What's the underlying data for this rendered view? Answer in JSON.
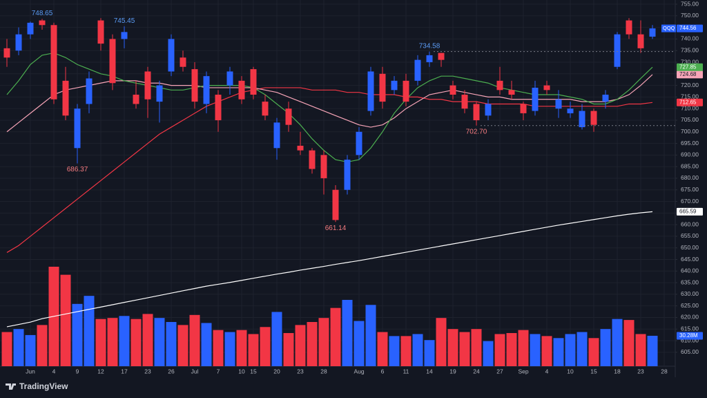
{
  "chart_data": {
    "type": "candlestick",
    "symbol": "QQQ",
    "brand": "TradingView",
    "up_color": "#2962ff",
    "down_color": "#f23645",
    "categories": [
      null,
      null,
      "Jun",
      null,
      "4",
      null,
      "9",
      null,
      "12",
      null,
      "17",
      null,
      "23",
      null,
      "26",
      null,
      "Jul",
      null,
      "7",
      null,
      "10",
      "15",
      null,
      "20",
      null,
      "23",
      null,
      "28",
      null,
      null,
      "Aug",
      null,
      "6",
      null,
      "11",
      null,
      "14",
      null,
      "19",
      null,
      "24",
      null,
      "27",
      null,
      "Sep",
      null,
      "4",
      null,
      "10",
      null,
      "15",
      null,
      "18",
      null,
      "23",
      null,
      "28"
    ],
    "open": [
      736,
      735,
      742,
      748,
      746,
      722,
      693,
      712,
      748,
      740,
      740,
      716,
      726,
      713,
      726,
      732,
      727,
      712,
      716,
      720,
      722,
      727,
      713,
      693,
      710,
      694,
      692,
      690,
      675,
      675,
      690,
      709,
      725,
      718,
      722,
      722,
      730,
      734,
      720,
      716,
      712,
      707,
      722,
      718,
      712,
      709,
      720,
      710,
      708,
      702,
      709,
      713,
      728,
      748,
      742,
      741,
      null
    ],
    "high": [
      740,
      745,
      747.5,
      748.65,
      747,
      728,
      712,
      726,
      749,
      742,
      745.45,
      722,
      728,
      722,
      742,
      735,
      730,
      726,
      718,
      728,
      724,
      728,
      716,
      706,
      713,
      700,
      693,
      692,
      677,
      690,
      702,
      728,
      728,
      724,
      725,
      733,
      734.58,
      734,
      722,
      718,
      713,
      714,
      728,
      722,
      713,
      722,
      722,
      718,
      713,
      712,
      710,
      718,
      743,
      749,
      748,
      746,
      null
    ],
    "low": [
      728,
      733,
      740,
      744,
      712,
      705,
      686.37,
      708,
      735,
      718,
      736,
      710,
      706,
      704,
      724,
      726,
      710,
      708,
      700,
      716,
      712,
      714,
      705,
      688,
      700,
      690,
      682,
      673,
      661.14,
      673,
      688,
      707,
      710,
      716,
      711,
      720,
      728,
      728,
      714,
      708,
      702.7,
      705,
      716,
      714,
      705,
      707,
      716,
      706,
      706,
      701,
      700,
      710,
      727,
      740,
      734,
      740,
      null
    ],
    "close": [
      732,
      742,
      747,
      746,
      714,
      707,
      710,
      723,
      738,
      721,
      743,
      712,
      714,
      720,
      740,
      728,
      713,
      724,
      705,
      726,
      714,
      716,
      707,
      704,
      703,
      692,
      684,
      680,
      662,
      688,
      700,
      726,
      713,
      722,
      713,
      731,
      733,
      731,
      716,
      710,
      705,
      712,
      718,
      716,
      708,
      719,
      718,
      714,
      710,
      709,
      703,
      716,
      742,
      742,
      736,
      744.56,
      null
    ],
    "high_labels": [
      null,
      null,
      null,
      "748.65",
      null,
      null,
      null,
      null,
      null,
      null,
      "745.45",
      null,
      null,
      null,
      null,
      null,
      null,
      null,
      null,
      null,
      null,
      null,
      null,
      null,
      null,
      null,
      null,
      null,
      null,
      null,
      null,
      null,
      null,
      null,
      null,
      null,
      "734.58",
      null,
      null,
      null,
      null,
      null,
      null,
      null,
      null,
      null,
      null,
      null,
      null,
      null,
      null,
      null,
      null,
      null,
      null,
      null,
      null
    ],
    "low_labels": [
      null,
      null,
      null,
      null,
      null,
      null,
      "686.37",
      null,
      null,
      null,
      null,
      null,
      null,
      null,
      null,
      null,
      null,
      null,
      null,
      null,
      null,
      null,
      null,
      null,
      null,
      null,
      null,
      null,
      "661.14",
      null,
      null,
      null,
      null,
      null,
      null,
      null,
      null,
      null,
      null,
      null,
      "702.70",
      null,
      null,
      null,
      null,
      null,
      null,
      null,
      null,
      null,
      null,
      null,
      null,
      null,
      null,
      null,
      null
    ],
    "high_label_color": "#5b9cf6",
    "low_label_color": "#f77c80",
    "volume": {
      "values": [
        34,
        37,
        31,
        41,
        99,
        91,
        62,
        70,
        47,
        48,
        50,
        47,
        52,
        48,
        44,
        41,
        51,
        43,
        36,
        34,
        36,
        32,
        39,
        54,
        33,
        41,
        44,
        48,
        58,
        66,
        45,
        61,
        34,
        30,
        30,
        32,
        26,
        48,
        37,
        34,
        37,
        25,
        32,
        33,
        36,
        32,
        30,
        28,
        32,
        34,
        28,
        37,
        47,
        46,
        32,
        30.28,
        null
      ],
      "last_label": "30.28M",
      "ylim": [
        0,
        110
      ]
    },
    "moving_averages": [
      {
        "color": "#ffffff",
        "values": [
          616,
          617,
          618,
          619.5,
          620.5,
          621.5,
          622.5,
          623.5,
          624.5,
          625.5,
          626.5,
          627.5,
          628.5,
          629.5,
          630.5,
          631.5,
          632.5,
          633.5,
          634.3,
          635.1,
          636,
          636.9,
          637.8,
          638.7,
          639.5,
          640.4,
          641.2,
          642,
          642.9,
          643.7,
          644.5,
          645.4,
          646.3,
          647.2,
          648.1,
          649,
          649.9,
          650.8,
          651.7,
          652.6,
          653.5,
          654.4,
          655.3,
          656.2,
          657.1,
          658,
          658.9,
          659.8,
          660.6,
          661.4,
          662.2,
          663,
          663.8,
          664.5,
          665.1,
          665.59,
          null
        ]
      },
      {
        "color": "#f23645",
        "values": [
          648,
          651,
          655,
          659,
          663,
          667,
          671,
          675,
          679,
          683,
          687,
          691,
          695,
          699,
          702,
          705,
          708,
          711,
          713,
          715,
          717,
          718,
          719,
          719,
          719,
          719,
          718,
          718,
          718,
          717,
          717,
          716,
          716,
          716,
          715,
          715,
          714,
          714,
          713,
          713,
          713,
          712,
          712,
          712,
          712,
          711,
          711,
          711,
          711,
          711,
          711,
          711,
          711,
          712,
          712,
          712.65,
          null
        ]
      },
      {
        "color": "#f8a5b8",
        "values": [
          700,
          704,
          708,
          712,
          716,
          718,
          719,
          720,
          721,
          722,
          722,
          722,
          721,
          721,
          720,
          720,
          720,
          719,
          719,
          719,
          719,
          719,
          718,
          717,
          715,
          713,
          711,
          709,
          707,
          705,
          703,
          702,
          703,
          706,
          710,
          713,
          716,
          717,
          718,
          717,
          716,
          715,
          715,
          714,
          714,
          714,
          714,
          714,
          714,
          713,
          713,
          713,
          714,
          716,
          720,
          724.68,
          null
        ]
      },
      {
        "color": "#4caf50",
        "values": [
          716,
          722,
          729,
          733,
          734,
          732,
          729,
          727,
          725,
          724,
          722,
          721,
          720,
          719,
          718,
          718,
          719,
          720,
          720,
          720,
          720,
          719,
          716,
          712,
          708,
          703,
          697,
          692,
          688,
          687,
          688,
          693,
          700,
          708,
          714,
          719,
          722,
          724,
          724,
          723,
          722,
          721,
          719,
          718,
          717,
          716,
          716,
          716,
          715,
          714,
          712,
          712,
          714,
          718,
          723,
          727.85,
          null
        ]
      }
    ],
    "ylim": [
      599,
      756.8
    ],
    "yticks": [
      {
        "value": 755,
        "label": "755.00"
      },
      {
        "value": 750,
        "label": "750.00"
      },
      {
        "value": 745,
        "label": "745.00"
      },
      {
        "value": 740,
        "label": "740.00"
      },
      {
        "value": 735,
        "label": "735.00"
      },
      {
        "value": 730,
        "label": "730.00"
      },
      {
        "value": 725,
        "label": "725.00"
      },
      {
        "value": 720,
        "label": "720.00"
      },
      {
        "value": 715,
        "label": "715.00"
      },
      {
        "value": 710,
        "label": "710.00"
      },
      {
        "value": 705,
        "label": "705.00"
      },
      {
        "value": 700,
        "label": "700.00"
      },
      {
        "value": 695,
        "label": "695.00"
      },
      {
        "value": 690,
        "label": "690.00"
      },
      {
        "value": 685,
        "label": "685.00"
      },
      {
        "value": 680,
        "label": "680.00"
      },
      {
        "value": 675,
        "label": "675.00"
      },
      {
        "value": 670,
        "label": "670.00"
      },
      {
        "value": 665,
        "label": "665.00"
      },
      {
        "value": 660,
        "label": "660.00"
      },
      {
        "value": 655,
        "label": "655.00"
      },
      {
        "value": 650,
        "label": "650.00"
      },
      {
        "value": 645,
        "label": "645.00"
      },
      {
        "value": 640,
        "label": "640.00"
      },
      {
        "value": 635,
        "label": "635.00"
      },
      {
        "value": 630,
        "label": "630.00"
      },
      {
        "value": 625,
        "label": "625.00"
      },
      {
        "value": 620,
        "label": "620.00"
      },
      {
        "value": 615,
        "label": "615.00"
      },
      {
        "value": 610,
        "label": "610.00"
      },
      {
        "value": 605,
        "label": "605.00"
      }
    ],
    "grid": true
  }
}
